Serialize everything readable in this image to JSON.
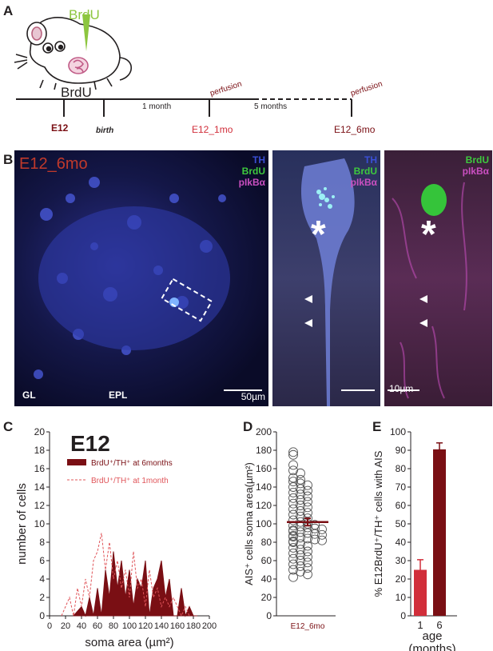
{
  "panel_letters": {
    "a": "A",
    "b": "B",
    "c": "C",
    "d": "D",
    "e": "E"
  },
  "panelA": {
    "brdu_injection": "BrdU",
    "brdu_timeline": "BrdU",
    "e12": "E12",
    "birth": "birth",
    "one_month": "1 month",
    "five_months": "5 months",
    "perfusion1": "perfusion",
    "perfusion2": "perfusion",
    "e12_1mo": "E12_1mo",
    "e12_6mo": "E12_6mo"
  },
  "panelB": {
    "title": "E12_6mo",
    "ch_th": "TH",
    "ch_brdu": "BrdU",
    "ch_plkb": "pIkBα",
    "gl": "GL",
    "epl": "EPL",
    "scale1": "50µm",
    "scale2": "10µm",
    "asterisk": "*",
    "colors": {
      "th": "#3a4fd6",
      "brdu": "#3ec93e",
      "plkb": "#c94fc0",
      "title": "#c0392b"
    }
  },
  "chart_data": [
    {
      "type": "area",
      "panel": "C",
      "title": "E12",
      "xlabel": "soma area (µm²)",
      "ylabel": "number of cells",
      "xlim": [
        0,
        200
      ],
      "ylim": [
        0,
        20
      ],
      "xticks": [
        "0",
        "20",
        "40",
        "60",
        "80",
        "100",
        "120",
        "140",
        "160",
        "180",
        "200"
      ],
      "yticks": [
        "0",
        "2",
        "4",
        "6",
        "8",
        "10",
        "12",
        "14",
        "16",
        "18",
        "20"
      ],
      "series": [
        {
          "name": "BrdU⁺/TH⁺ at 6months",
          "style": "filled",
          "color": "#7a0f14",
          "x": [
            30,
            40,
            45,
            50,
            55,
            60,
            65,
            70,
            75,
            80,
            85,
            90,
            95,
            100,
            105,
            110,
            115,
            120,
            125,
            130,
            135,
            140,
            145,
            150,
            155,
            160,
            165,
            170,
            175,
            180,
            185
          ],
          "y": [
            0,
            1,
            0,
            2,
            0,
            3,
            0,
            5,
            2,
            7,
            3,
            6,
            2,
            5,
            1,
            4,
            3,
            6,
            0,
            3,
            4,
            6,
            2,
            4,
            0,
            0,
            3,
            0,
            1,
            0,
            0
          ]
        },
        {
          "name": "BrdU⁺/TH⁺ at 1month",
          "style": "dashed",
          "color": "#e0555a",
          "x": [
            15,
            20,
            25,
            30,
            35,
            40,
            45,
            50,
            55,
            60,
            65,
            70,
            75,
            80,
            85,
            90,
            95,
            100,
            105,
            110,
            115,
            120,
            125,
            130,
            135,
            140,
            145,
            150,
            155,
            160,
            165,
            170,
            175
          ],
          "y": [
            0,
            1,
            2,
            0,
            3,
            1,
            4,
            2,
            6,
            7,
            9,
            5,
            8,
            4,
            6,
            3,
            5,
            2,
            7,
            3,
            4,
            1,
            5,
            2,
            3,
            1,
            2,
            1,
            2,
            1,
            0,
            1,
            0
          ]
        }
      ]
    },
    {
      "type": "scatter",
      "panel": "D",
      "ylabel": "AIS⁺ cells soma area(µm²)",
      "xlabel": "E12_6mo",
      "ylim": [
        0,
        200
      ],
      "yticks": [
        "0",
        "20",
        "40",
        "60",
        "80",
        "100",
        "120",
        "140",
        "160",
        "180",
        "200"
      ],
      "mean": 102,
      "sem": 4,
      "values": [
        178,
        175,
        164,
        158,
        155,
        150,
        148,
        146,
        144,
        142,
        140,
        138,
        136,
        134,
        132,
        130,
        128,
        126,
        124,
        122,
        120,
        118,
        116,
        114,
        112,
        110,
        108,
        106,
        104,
        102,
        100,
        99,
        98,
        97,
        96,
        95,
        94,
        93,
        92,
        91,
        90,
        89,
        88,
        87,
        86,
        85,
        84,
        83,
        82,
        81,
        80,
        78,
        76,
        74,
        72,
        70,
        68,
        66,
        64,
        62,
        60,
        58,
        56,
        54,
        52,
        50,
        48,
        45,
        42
      ]
    },
    {
      "type": "bar",
      "panel": "E",
      "ylabel": "% E12BrdU⁺/TH⁺ cells with AIS",
      "xlabel": "age (months)",
      "categories": [
        "1",
        "6"
      ],
      "values": [
        25,
        90.5
      ],
      "errors": [
        5.5,
        3.5
      ],
      "colors": [
        "#d12e3a",
        "#7a0f14"
      ],
      "ylim": [
        0,
        100
      ],
      "yticks": [
        "0",
        "10",
        "20",
        "30",
        "40",
        "50",
        "60",
        "70",
        "80",
        "90",
        "100"
      ]
    }
  ]
}
